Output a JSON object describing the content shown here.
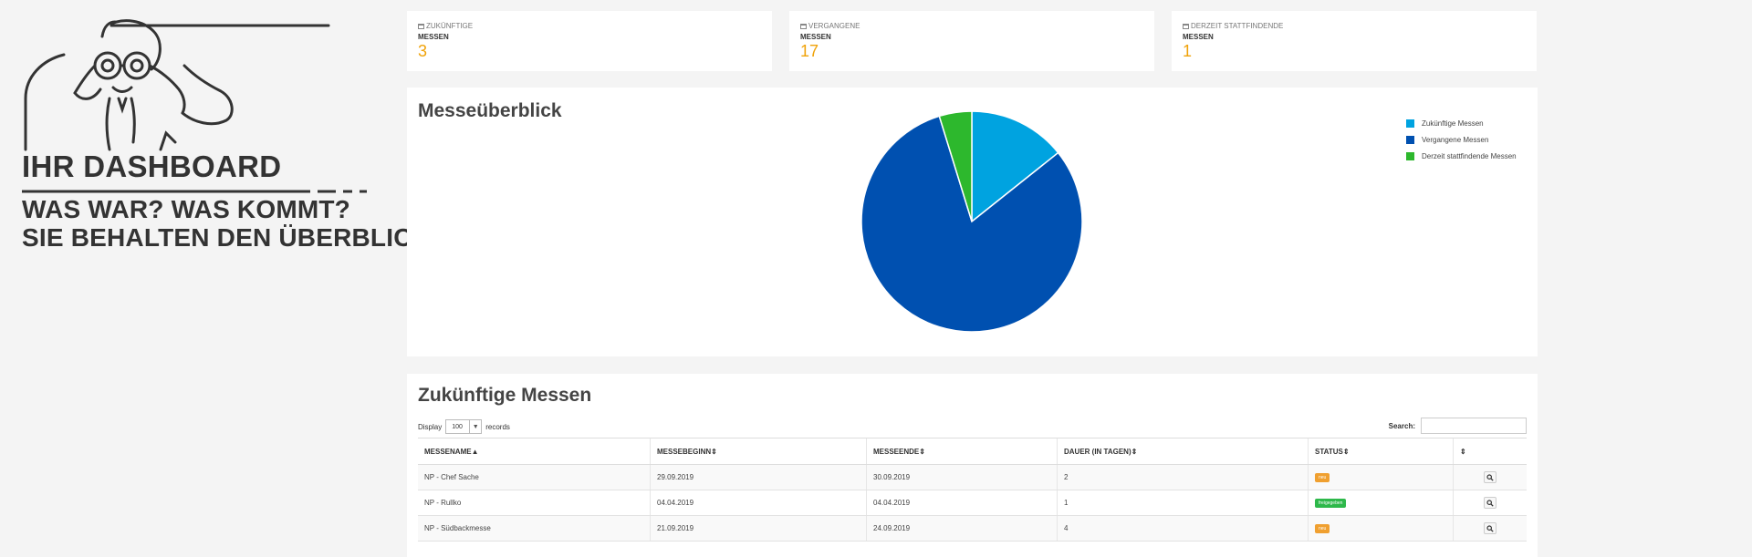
{
  "promo": {
    "headline": "IHR DASHBOARD",
    "line2": "WAS WAR? WAS KOMMT?",
    "line3": "SIE BEHALTEN DEN ÜBERBLICK!"
  },
  "stats": [
    {
      "label_top": "ZUKÜNFTIGE",
      "label_bottom": "MESSEN",
      "value": "3"
    },
    {
      "label_top": "VERGANGENE",
      "label_bottom": "MESSEN",
      "value": "17"
    },
    {
      "label_top": "DERZEIT STATTFINDENDE",
      "label_bottom": "MESSEN",
      "value": "1"
    }
  ],
  "overview": {
    "title": "Messeüberblick"
  },
  "chart_data": {
    "type": "pie",
    "title": "",
    "legend_position": "top-right",
    "categories": [
      "Zukünftige Messen",
      "Vergangene Messen",
      "Derzeit stattfindende Messen"
    ],
    "values": [
      3,
      17,
      1
    ],
    "colors": [
      "#00a3e0",
      "#0050b0",
      "#2db82d"
    ]
  },
  "future": {
    "title": "Zukünftige Messen",
    "display_label": "Display",
    "display_value": "100",
    "records_label": "records",
    "search_label": "Search:",
    "columns": [
      "MESSENAME",
      "MESSEBEGINN",
      "MESSEENDE",
      "DAUER (IN TAGEN)",
      "STATUS",
      ""
    ],
    "rows": [
      {
        "name": "NP - Chef Sache",
        "start": "29.09.2019",
        "end": "30.09.2019",
        "days": "2",
        "status": "neu",
        "status_color": "#f0a030"
      },
      {
        "name": "NP - Rullko",
        "start": "04.04.2019",
        "end": "04.04.2019",
        "days": "1",
        "status": "freigegeben",
        "status_color": "#2db84a"
      },
      {
        "name": "NP - Südbackmesse",
        "start": "21.09.2019",
        "end": "24.09.2019",
        "days": "4",
        "status": "neu",
        "status_color": "#f0a030"
      }
    ]
  }
}
